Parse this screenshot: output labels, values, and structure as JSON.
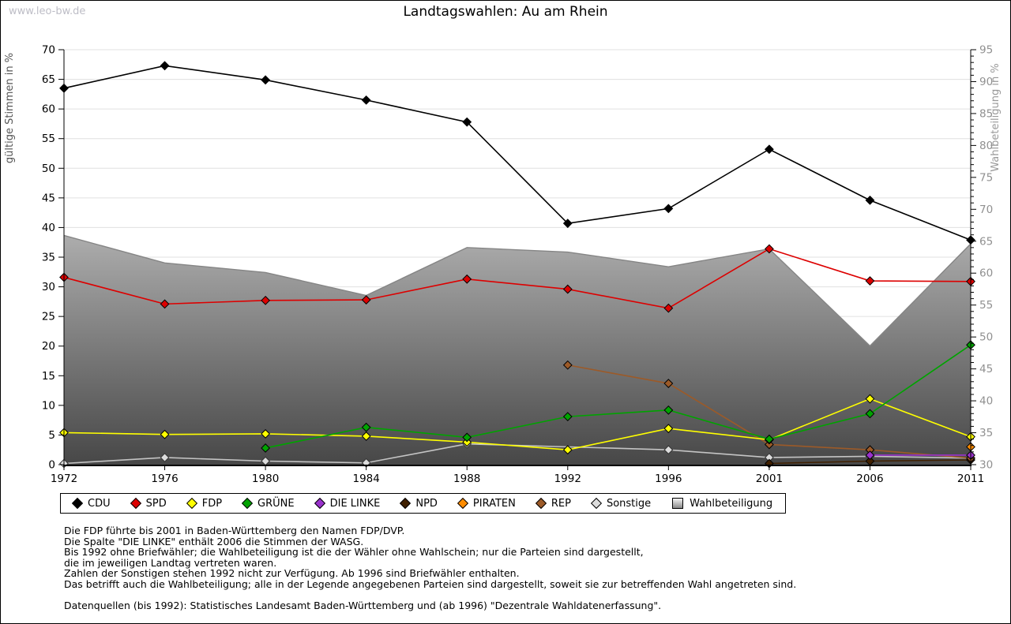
{
  "watermark": "www.leo-bw.de",
  "title": "Landtagswahlen: Au am Rhein",
  "chart_data": {
    "type": "line",
    "categories": [
      "1972",
      "1976",
      "1980",
      "1984",
      "1988",
      "1992",
      "1996",
      "2001",
      "2006",
      "2011"
    ],
    "left_axis": {
      "label": "gültige Stimmen in %",
      "min": 0,
      "max": 70,
      "tick_step": 5
    },
    "right_axis": {
      "label": "Wahlbeteiligung in %",
      "min": 30,
      "max": 95,
      "tick_step": 5,
      "minor_step": 1
    },
    "grid": "horizontal",
    "area_gradient": [
      "#ffffff",
      "#474747"
    ],
    "series": [
      {
        "name": "Wahlbeteiligung",
        "type": "area",
        "axis": "right",
        "color": "#858585",
        "values": [
          65.9,
          61.6,
          60.1,
          56.5,
          64.0,
          63.3,
          61.0,
          63.8,
          48.6,
          64.6
        ]
      },
      {
        "name": "Sonstige",
        "type": "line",
        "axis": "left",
        "color": "#dcdcdc",
        "line": "#c4c4c4",
        "edge": "#333333",
        "values": [
          0.2,
          1.2,
          0.6,
          0.3,
          3.5,
          null,
          2.5,
          1.2,
          1.4,
          1.1
        ]
      },
      {
        "name": "NPD",
        "type": "line",
        "axis": "left",
        "color": "#402000",
        "values": [
          null,
          null,
          null,
          null,
          null,
          null,
          null,
          0.2,
          0.6,
          0.8
        ]
      },
      {
        "name": "REP",
        "type": "line",
        "axis": "left",
        "color": "#9c5a28",
        "values": [
          null,
          null,
          null,
          null,
          null,
          16.8,
          13.7,
          3.4,
          2.5,
          1.1
        ]
      },
      {
        "name": "PIRATEN",
        "type": "line",
        "axis": "left",
        "color": "#ff8c00",
        "values": [
          null,
          null,
          null,
          null,
          null,
          null,
          null,
          null,
          null,
          3.0
        ]
      },
      {
        "name": "DIE LINKE",
        "type": "line",
        "axis": "left",
        "color": "#9932cc",
        "values": [
          null,
          null,
          null,
          null,
          null,
          null,
          null,
          null,
          1.6,
          1.6
        ]
      },
      {
        "name": "FDP",
        "type": "line",
        "axis": "left",
        "color": "#ffff00",
        "values": [
          5.4,
          5.1,
          5.2,
          4.8,
          3.8,
          2.5,
          6.1,
          4.2,
          11.1,
          4.7
        ]
      },
      {
        "name": "GRÜNE",
        "type": "line",
        "axis": "left",
        "color": "#00a300",
        "values": [
          null,
          null,
          2.8,
          6.3,
          4.6,
          8.1,
          9.2,
          4.3,
          8.6,
          20.2
        ]
      },
      {
        "name": "SPD",
        "type": "line",
        "axis": "left",
        "color": "#dd0000",
        "values": [
          31.6,
          27.1,
          27.7,
          27.8,
          31.3,
          29.6,
          26.4,
          36.4,
          31.0,
          30.9
        ]
      },
      {
        "name": "CDU",
        "type": "line",
        "axis": "left",
        "color": "#000000",
        "values": [
          63.5,
          67.3,
          64.9,
          61.5,
          57.8,
          40.7,
          43.2,
          53.2,
          44.6,
          37.9
        ]
      }
    ]
  },
  "legend": {
    "items": [
      {
        "label": "CDU",
        "color": "#000000",
        "marker": "diamond"
      },
      {
        "label": "SPD",
        "color": "#dd0000",
        "marker": "diamond"
      },
      {
        "label": "FDP",
        "color": "#ffff00",
        "marker": "diamond"
      },
      {
        "label": "GRÜNE",
        "color": "#00a300",
        "marker": "diamond"
      },
      {
        "label": "DIE LINKE",
        "color": "#9932cc",
        "marker": "diamond"
      },
      {
        "label": "NPD",
        "color": "#402000",
        "marker": "diamond"
      },
      {
        "label": "PIRATEN",
        "color": "#ff8c00",
        "marker": "diamond"
      },
      {
        "label": "REP",
        "color": "#9c5a28",
        "marker": "diamond"
      },
      {
        "label": "Sonstige",
        "color": "#dcdcdc",
        "marker": "diamond"
      },
      {
        "label": "Wahlbeteiligung",
        "color": "#b0b0b0",
        "marker": "square"
      }
    ]
  },
  "notes": [
    "Die FDP führte bis 2001 in Baden-Württemberg den Namen FDP/DVP.",
    "Die Spalte \"DIE LINKE\" enthält 2006 die Stimmen der WASG.",
    "Bis 1992 ohne Briefwähler; die Wahlbeteiligung ist die der Wähler ohne Wahlschein; nur die Parteien sind dargestellt,",
    "die im jeweiligen Landtag vertreten waren.",
    "Zahlen der Sonstigen stehen 1992 nicht zur Verfügung. Ab 1996 sind Briefwähler enthalten.",
    "Das betrifft auch die Wahlbeteiligung; alle in der Legende angegebenen Parteien sind dargestellt, soweit sie zur betreffenden Wahl angetreten sind.",
    "",
    "Datenquellen (bis 1992): Statistisches Landesamt Baden-Württemberg und (ab 1996) \"Dezentrale Wahldatenerfassung\"."
  ]
}
